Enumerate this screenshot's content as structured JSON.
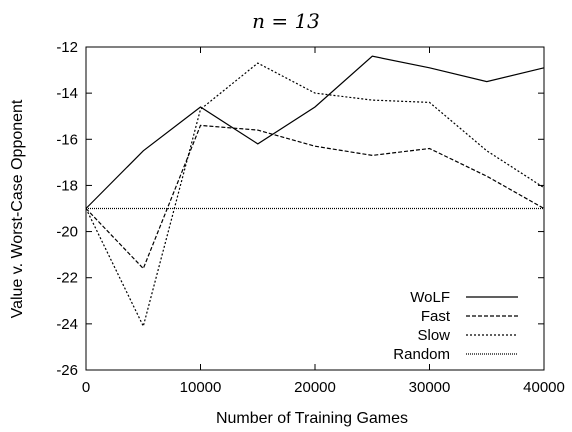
{
  "chart_data": {
    "type": "line",
    "title": "n = 13",
    "xlabel": "Number of Training Games",
    "ylabel": "Value v. Worst-Case Opponent",
    "xlim": [
      0,
      40000
    ],
    "ylim": [
      -26,
      -12
    ],
    "xticks": [
      0,
      10000,
      20000,
      30000,
      40000
    ],
    "yticks": [
      -26,
      -24,
      -22,
      -20,
      -18,
      -16,
      -14,
      -12
    ],
    "grid": false,
    "legend_position": "bottom-right",
    "series": [
      {
        "name": "WoLF",
        "style": "solid",
        "x": [
          0,
          5000,
          10000,
          15000,
          20000,
          25000,
          30000,
          35000,
          40000
        ],
        "y": [
          -19.0,
          -16.5,
          -14.6,
          -16.2,
          -14.6,
          -12.4,
          -12.9,
          -13.5,
          -12.9
        ]
      },
      {
        "name": "Fast",
        "style": "dashed",
        "x": [
          0,
          5000,
          10000,
          15000,
          20000,
          25000,
          30000,
          35000,
          40000
        ],
        "y": [
          -19.0,
          -21.6,
          -15.4,
          -15.6,
          -16.3,
          -16.7,
          -16.4,
          -17.6,
          -19.0
        ]
      },
      {
        "name": "Slow",
        "style": "dotted",
        "x": [
          0,
          5000,
          10000,
          15000,
          20000,
          25000,
          30000,
          35000,
          40000
        ],
        "y": [
          -19.0,
          -24.1,
          -14.7,
          -12.7,
          -14.0,
          -14.3,
          -14.4,
          -16.5,
          -18.1
        ]
      },
      {
        "name": "Random",
        "style": "fine-dotted",
        "x": [
          0,
          40000
        ],
        "y": [
          -19.0,
          -19.0
        ]
      }
    ]
  }
}
